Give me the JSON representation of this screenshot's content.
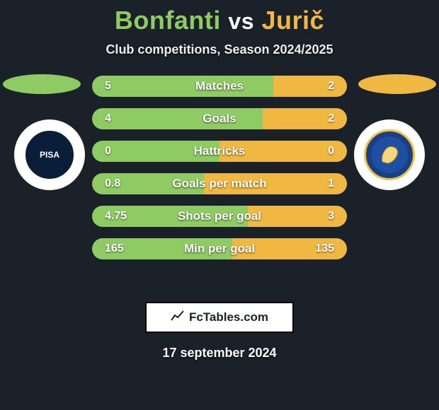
{
  "header": {
    "player1_name": "Bonfanti",
    "vs_text": "vs",
    "player2_name": "Jurič"
  },
  "subtitle": "Club competitions, Season 2024/2025",
  "colors": {
    "player1": "#8ecb62",
    "player2": "#f0b840",
    "background": "#1a2129"
  },
  "clubs": {
    "left_label": "PISA",
    "right_label": ""
  },
  "stats": [
    {
      "label": "Matches",
      "left_val": "5",
      "right_val": "2",
      "left_pct": 71,
      "right_pct": 29
    },
    {
      "label": "Goals",
      "left_val": "4",
      "right_val": "2",
      "left_pct": 67,
      "right_pct": 33
    },
    {
      "label": "Hattricks",
      "left_val": "0",
      "right_val": "0",
      "left_pct": 50,
      "right_pct": 50
    },
    {
      "label": "Goals per match",
      "left_val": "0.8",
      "right_val": "1",
      "left_pct": 44,
      "right_pct": 56
    },
    {
      "label": "Shots per goal",
      "left_val": "4.75",
      "right_val": "3",
      "left_pct": 61,
      "right_pct": 39
    },
    {
      "label": "Min per goal",
      "left_val": "165",
      "right_val": "135",
      "left_pct": 55,
      "right_pct": 45
    }
  ],
  "footer": {
    "site": "FcTables.com",
    "date": "17 september 2024"
  }
}
